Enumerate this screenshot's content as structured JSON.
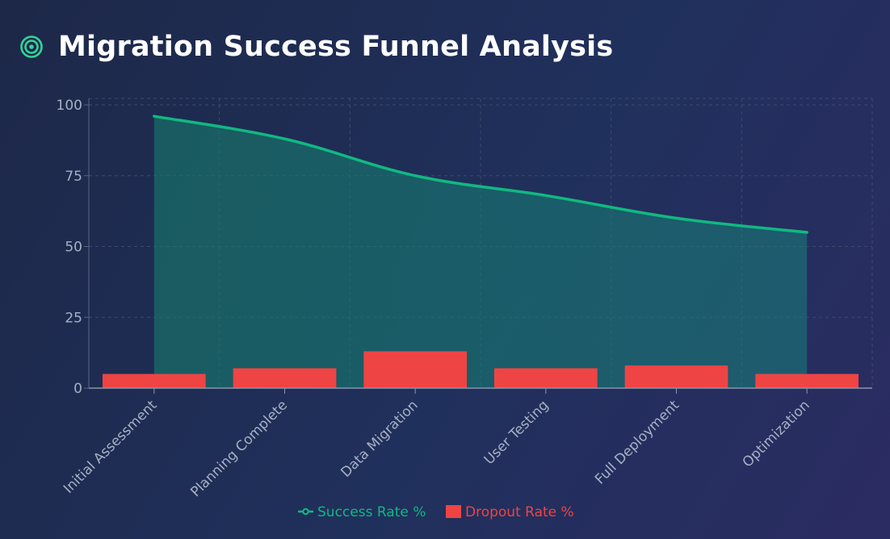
{
  "title": "Migration Success Funnel Analysis",
  "icon": "target-icon",
  "colors": {
    "success": "#10b981",
    "dropout": "#ef4444",
    "accent": "#34d399"
  },
  "chart_data": {
    "type": "bar",
    "categories": [
      "Initial Assessment",
      "Planning Complete",
      "Data Migration",
      "User Testing",
      "Full Deployment",
      "Optimization"
    ],
    "series": [
      {
        "name": "Success Rate %",
        "type": "area",
        "values": [
          96,
          88,
          75,
          68,
          60,
          55
        ]
      },
      {
        "name": "Dropout Rate %",
        "type": "bar",
        "values": [
          5,
          7,
          13,
          7,
          8,
          5
        ]
      }
    ],
    "ylim": [
      0,
      100
    ],
    "yticks": [
      0,
      25,
      50,
      75,
      100
    ],
    "grid": true,
    "legend": "bottom"
  }
}
